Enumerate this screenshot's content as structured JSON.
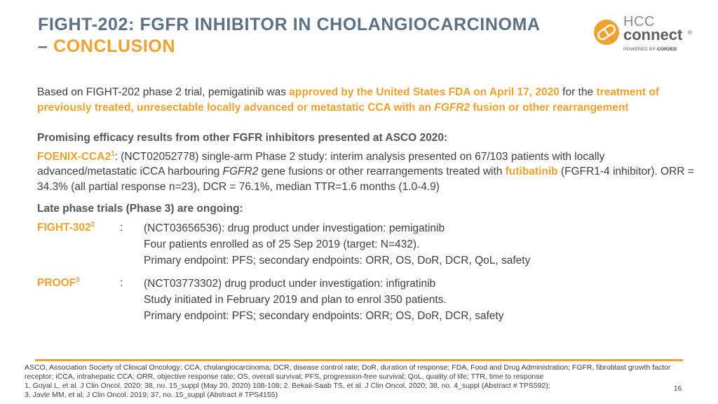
{
  "title": {
    "line1": "FIGHT-202: FGFR INHIBITOR IN CHOLANGIOCARCINOMA",
    "dash": "– ",
    "line2": "CONCLUSION"
  },
  "logo": {
    "hcc": "HCC",
    "connect": "connect",
    "reg": "®",
    "powered_prefix": "POWERED BY",
    "powered_brand": "COR2ED",
    "colors": {
      "orange": "#f0a02c",
      "gray": "#5b6066"
    }
  },
  "para1": {
    "a": "Based on FIGHT-202 phase 2 trial, pemigatinib was ",
    "b": "approved by the United States FDA on April 17, 2020",
    "c": " for the ",
    "d": "treatment of previously treated, unresectable locally advanced or metastatic CCA with an ",
    "e": "FGFR2",
    "f": " fusion or other rearrangement"
  },
  "efficacy_heading": "Promising efficacy results from other FGFR inhibitors presented at ASCO 2020:",
  "foenix": {
    "name": "FOENIX-CCA2",
    "sup": "1",
    "a": ": (NCT02052778) single-arm Phase 2 study: interim analysis presented on 67/103 patients with locally advanced/metastatic iCCA harbouring ",
    "b": "FGFR2",
    "c": " gene fusions or other rearrangements treated with ",
    "d": "futibatinib",
    "e": " (FGFR1-4 inhibitor). ORR = 34.3% (all partial response n=23), DCR = 76.1%, median TTR=1.6 months (1.0-4.9)"
  },
  "late_heading": "Late phase trials (Phase 3) are ongoing:",
  "trials": [
    {
      "name": "FIGHT-302",
      "sup": "2",
      "colon": ":",
      "lines": [
        "(NCT03656536): drug product under investigation: pemigatinib",
        "Four patients enrolled as of 25 Sep 2019 (target: N=432).",
        "Primary endpoint: PFS; secondary endpoints: ORR, OS, DoR, DCR, QoL, safety"
      ]
    },
    {
      "name": "PROOF",
      "sup": "3",
      "colon": ":",
      "lines": [
        "(NCT03773302) drug product under investigation: infigratinib",
        "Study initiated in February 2019 and plan to enrol 350 patients.",
        "Primary endpoint: PFS; secondary endpoints: ORR; OS, DoR, DCR, safety"
      ]
    }
  ],
  "footer": {
    "abbrev": "ASCO, Association Society of Clinical Oncology; CCA, cholangiocarcinoma; DCR, disease control rate; DoR, duration of response; FDA, Food and Drug Administration; FGFR, fibroblast growth factor receptor; iCCA, intrahepatic CCA; ORR, objective response rate; OS, overall survival; PFS, progression-free survival; QoL, quality of life; TTR, time to response",
    "refs1": "1. Goyal L, et al. J Clin Oncol. 2020; 38, no. 15_suppl (May 20, 2020) 108-108;  2. Bekaii-Saab TS, et al. J Clin Oncol. 2020; 38, no. 4_suppl (Abstract # TPS592);",
    "refs2": "3. Javle MM, et al. J Clin Oncol. 2019; 37, no. 15_suppl (Abstract # TPS4155)"
  },
  "page_number": "16"
}
